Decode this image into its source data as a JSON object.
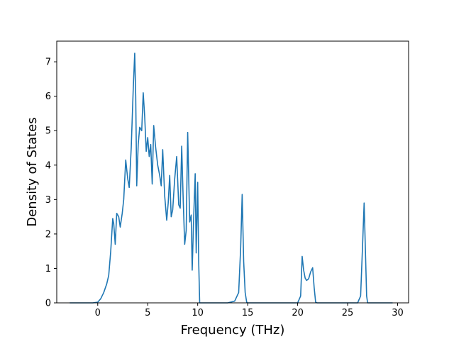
{
  "chart_data": {
    "type": "line",
    "title": "",
    "xlabel": "Frequency (THz)",
    "ylabel": "Density of States",
    "xlim": [
      -4.1,
      31.1
    ],
    "ylim": [
      0,
      7.6
    ],
    "x_ticks": [
      0,
      5,
      10,
      15,
      20,
      25,
      30
    ],
    "y_ticks": [
      0,
      1,
      2,
      3,
      4,
      5,
      6,
      7
    ],
    "grid": false,
    "legend": "none",
    "line_color": "#1f77b4",
    "series": [
      {
        "x": [
          -2.8,
          -2.0,
          -1.0,
          -0.5,
          0.0,
          0.3,
          0.6,
          0.9,
          1.1,
          1.3,
          1.5,
          1.6,
          1.75,
          1.9,
          2.0,
          2.1,
          2.25,
          2.45,
          2.6,
          2.8,
          3.0,
          3.15,
          3.35,
          3.55,
          3.7,
          3.8,
          3.9,
          4.05,
          4.2,
          4.4,
          4.55,
          4.7,
          4.85,
          5.0,
          5.15,
          5.3,
          5.45,
          5.6,
          5.8,
          6.0,
          6.2,
          6.35,
          6.5,
          6.7,
          6.9,
          7.05,
          7.2,
          7.35,
          7.5,
          7.7,
          7.9,
          8.1,
          8.25,
          8.4,
          8.55,
          8.7,
          8.85,
          9.0,
          9.2,
          9.35,
          9.45,
          9.6,
          9.75,
          9.85,
          10.0,
          10.1,
          10.2,
          10.3,
          10.45,
          10.6,
          10.75,
          11.0,
          12.0,
          13.0,
          13.7,
          14.1,
          14.3,
          14.45,
          14.6,
          14.75,
          14.9,
          15.0,
          15.2,
          16.0,
          18.0,
          20.0,
          20.3,
          20.45,
          20.6,
          20.75,
          20.9,
          21.1,
          21.3,
          21.5,
          21.65,
          21.8,
          21.95,
          22.2,
          23.0,
          25.0,
          26.0,
          26.3,
          26.5,
          26.65,
          26.8,
          26.9,
          27.0,
          27.2,
          28.0,
          29.5
        ],
        "y": [
          0,
          0,
          0,
          0,
          0.02,
          0.12,
          0.3,
          0.55,
          0.8,
          1.5,
          2.45,
          2.3,
          1.7,
          2.6,
          2.55,
          2.5,
          2.2,
          2.6,
          3.0,
          4.15,
          3.6,
          3.35,
          4.5,
          6.2,
          7.25,
          6.0,
          3.4,
          4.6,
          5.1,
          5.0,
          6.1,
          5.4,
          4.4,
          4.8,
          4.25,
          4.6,
          3.45,
          5.15,
          4.5,
          4.0,
          3.7,
          3.4,
          4.45,
          3.1,
          2.4,
          2.9,
          3.7,
          2.5,
          2.7,
          3.6,
          4.25,
          2.85,
          2.75,
          4.55,
          3.0,
          1.7,
          2.1,
          4.95,
          2.35,
          2.55,
          0.95,
          2.5,
          3.75,
          1.45,
          3.5,
          1.2,
          0,
          0,
          0,
          0,
          0,
          0,
          0,
          0,
          0.05,
          0.3,
          1.6,
          3.15,
          1.2,
          0.3,
          0.02,
          0,
          0,
          0,
          0,
          0,
          0.2,
          1.35,
          0.95,
          0.72,
          0.65,
          0.7,
          0.9,
          1.02,
          0.45,
          0.02,
          0,
          0,
          0,
          0,
          0,
          0.2,
          1.7,
          2.9,
          1.3,
          0.2,
          0,
          0,
          0,
          0
        ]
      }
    ]
  }
}
